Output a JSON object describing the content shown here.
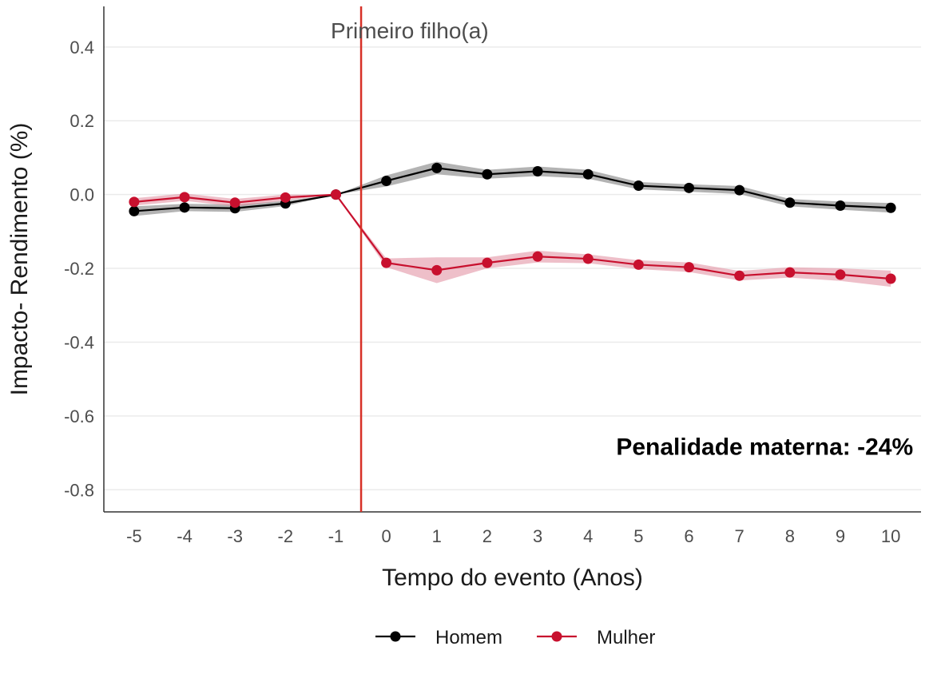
{
  "chart_data": {
    "type": "line",
    "title": "",
    "xlabel": "Tempo do evento (Anos)",
    "ylabel": "Impacto- Rendimento  (%)",
    "x": [
      -5,
      -4,
      -3,
      -2,
      -1,
      0,
      1,
      2,
      3,
      4,
      5,
      6,
      7,
      8,
      9,
      10
    ],
    "x_tick_labels": [
      "-5",
      "-4",
      "-3",
      "-2",
      "-1",
      "0",
      "1",
      "2",
      "3",
      "4",
      "5",
      "6",
      "7",
      "8",
      "9",
      "10"
    ],
    "y_ticks": [
      0.4,
      0.2,
      0.0,
      -0.2,
      -0.4,
      -0.6,
      -0.8
    ],
    "y_tick_labels": [
      "0.4",
      "0.2",
      "0.0",
      "-0.2",
      "-0.4",
      "-0.6",
      "-0.8"
    ],
    "xlim": [
      -5.6,
      10.6
    ],
    "ylim": [
      -0.86,
      0.51
    ],
    "grid": true,
    "legend_position": "bottom",
    "event_line": {
      "x": -0.5,
      "label": "Primeiro filho(a)",
      "color": "#d73027"
    },
    "annotation": {
      "text": "Penalidade materna: -24%",
      "x": 7.5,
      "y": -0.705
    },
    "series": [
      {
        "name": "Homem",
        "color": "#000000",
        "band_color": "#999999",
        "values": [
          -0.045,
          -0.035,
          -0.037,
          -0.024,
          0.0,
          0.037,
          0.072,
          0.055,
          0.063,
          0.055,
          0.024,
          0.018,
          0.012,
          -0.022,
          -0.03,
          -0.036
        ],
        "lower": [
          -0.058,
          -0.045,
          -0.047,
          -0.031,
          0.0,
          0.022,
          0.055,
          0.043,
          0.05,
          0.043,
          0.014,
          0.008,
          0.001,
          -0.032,
          -0.041,
          -0.049
        ],
        "upper": [
          -0.032,
          -0.025,
          -0.027,
          -0.017,
          0.0,
          0.052,
          0.089,
          0.067,
          0.076,
          0.067,
          0.034,
          0.028,
          0.023,
          -0.012,
          -0.019,
          -0.023
        ]
      },
      {
        "name": "Mulher",
        "color": "#c8102e",
        "band_color": "#e08a9c",
        "values": [
          -0.02,
          -0.007,
          -0.022,
          -0.008,
          0.0,
          -0.185,
          -0.205,
          -0.185,
          -0.168,
          -0.174,
          -0.19,
          -0.197,
          -0.22,
          -0.211,
          -0.217,
          -0.228
        ],
        "lower": [
          -0.03,
          -0.017,
          -0.032,
          -0.016,
          0.0,
          -0.197,
          -0.24,
          -0.2,
          -0.184,
          -0.186,
          -0.202,
          -0.21,
          -0.233,
          -0.225,
          -0.234,
          -0.25
        ],
        "upper": [
          -0.01,
          0.003,
          -0.012,
          0.0,
          0.0,
          -0.173,
          -0.17,
          -0.17,
          -0.152,
          -0.162,
          -0.178,
          -0.184,
          -0.207,
          -0.197,
          -0.2,
          -0.206
        ]
      }
    ]
  }
}
